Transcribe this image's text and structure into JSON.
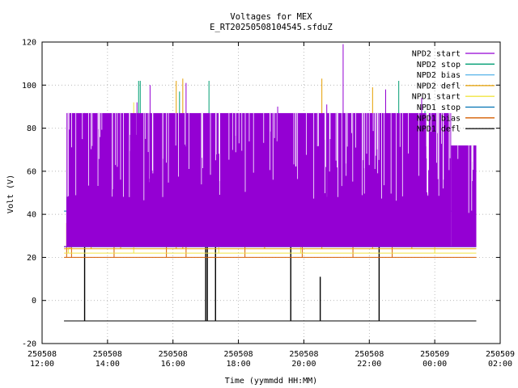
{
  "chart_data": {
    "type": "line",
    "title": "Voltages for MEX",
    "subtitle": "E_RT20250508104545.sfduZ",
    "xlabel": "Time (yymmdd HH:MM)",
    "ylabel": "Volt (V)",
    "ylim": [
      -20,
      120
    ],
    "yticks": [
      -20,
      0,
      20,
      40,
      60,
      80,
      100,
      120
    ],
    "xlim": [
      12,
      26
    ],
    "xticks": [
      {
        "x": 12,
        "date": "250508",
        "time": "12:00"
      },
      {
        "x": 14,
        "date": "250508",
        "time": "14:00"
      },
      {
        "x": 16,
        "date": "250508",
        "time": "16:00"
      },
      {
        "x": 18,
        "date": "250508",
        "time": "18:00"
      },
      {
        "x": 20,
        "date": "250508",
        "time": "20:00"
      },
      {
        "x": 22,
        "date": "250508",
        "time": "22:00"
      },
      {
        "x": 24,
        "date": "250509",
        "time": "00:00"
      },
      {
        "x": 26,
        "date": "250509",
        "time": "02:00"
      }
    ],
    "grid": true,
    "legend_position": "top-right",
    "data_start": 12.67,
    "data_end": 25.27,
    "series": [
      {
        "name": "NPD2 start",
        "color": "#9400d3",
        "base": 25,
        "level": 87,
        "secondary_level": 72,
        "secondary_from": 24.5,
        "spikes": [
          [
            13.3,
            87
          ],
          [
            14.9,
            92
          ],
          [
            15.3,
            100
          ],
          [
            16.4,
            101
          ],
          [
            17.8,
            87
          ],
          [
            19.2,
            90
          ],
          [
            20.7,
            91
          ],
          [
            21.2,
            119
          ],
          [
            22.5,
            98
          ],
          [
            23.6,
            94
          ]
        ]
      },
      {
        "name": "NPD2 stop",
        "color": "#009e73",
        "base": 25,
        "level": 25,
        "spikes": [
          [
            14.95,
            102
          ],
          [
            15.0,
            102
          ],
          [
            16.2,
            97
          ],
          [
            17.1,
            102
          ],
          [
            22.9,
            102
          ],
          [
            23.7,
            88
          ]
        ]
      },
      {
        "name": "NPD2 bias",
        "color": "#56b4e9",
        "base": 25,
        "level": 25,
        "spikes": [
          [
            12.9,
            41
          ],
          [
            13.2,
            40
          ],
          [
            14.1,
            42
          ],
          [
            18.5,
            40
          ],
          [
            21.4,
            41
          ],
          [
            24.6,
            40
          ]
        ]
      },
      {
        "name": "NPD2 defl",
        "color": "#e69f00",
        "base": 24,
        "level": 24,
        "spikes": [
          [
            12.85,
            41
          ],
          [
            13.5,
            42
          ],
          [
            14.4,
            40
          ],
          [
            16.1,
            102
          ],
          [
            16.3,
            103
          ],
          [
            18.8,
            42
          ],
          [
            20.55,
            103
          ],
          [
            22.1,
            99
          ],
          [
            23.3,
            42
          ]
        ]
      },
      {
        "name": "NPD1 start",
        "color": "#f0e442",
        "base": 22,
        "level": 22,
        "spikes": [
          [
            12.8,
            41
          ],
          [
            14.8,
            92
          ],
          [
            17.4,
            40
          ],
          [
            19.9,
            40
          ],
          [
            24.0,
            42
          ]
        ]
      },
      {
        "name": "NPD1 stop",
        "color": "#0072b2",
        "base": 25,
        "level": 25,
        "line2": 41.5,
        "spikes": [
          [
            13.0,
            42
          ],
          [
            15.4,
            43
          ],
          [
            19.4,
            42
          ]
        ]
      },
      {
        "name": "NPD1 bias",
        "color": "#d55e00",
        "base": 20,
        "level": 20,
        "spikes": [
          [
            12.75,
            36
          ],
          [
            12.9,
            68
          ],
          [
            14.2,
            80
          ],
          [
            15.8,
            75
          ],
          [
            16.4,
            60
          ],
          [
            18.2,
            65
          ],
          [
            19.95,
            60
          ],
          [
            21.5,
            40
          ],
          [
            22.7,
            43
          ]
        ]
      },
      {
        "name": "NPD1 defl",
        "color": "#000000",
        "base": -9.5,
        "level": -9.5,
        "spikes": [
          [
            13.3,
            72
          ],
          [
            17.0,
            52
          ],
          [
            17.05,
            52
          ],
          [
            17.3,
            72
          ],
          [
            19.6,
            72
          ],
          [
            20.5,
            11
          ],
          [
            22.3,
            73
          ]
        ]
      }
    ]
  }
}
